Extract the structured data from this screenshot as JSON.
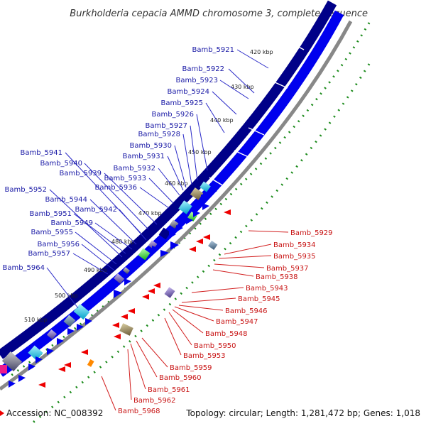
{
  "title": "Burkholderia cepacia AMMD chromosome 3, complete sequence",
  "footer": {
    "accession": "Accession: NC_008392",
    "summary": "Topology: circular; Length: 1,281,472 bp; Genes: 1,018"
  },
  "kbp_ticks": [
    "420 kbp",
    "430 kbp",
    "440 kbp",
    "450 kbp",
    "460 kbp",
    "470 kbp",
    "480 kbp",
    "490 kbp",
    "500 kbp",
    "510 kbp"
  ],
  "blue_labels": [
    "Bamb_5921",
    "Bamb_5922",
    "Bamb_5923",
    "Bamb_5924",
    "Bamb_5925",
    "Bamb_5926",
    "Bamb_5927",
    "Bamb_5928",
    "Bamb_5930",
    "Bamb_5931",
    "Bamb_5932",
    "Bamb_5933",
    "Bamb_5936",
    "Bamb_5939",
    "Bamb_5940",
    "Bamb_5941",
    "Bamb_5942",
    "Bamb_5944",
    "Bamb_5949",
    "Bamb_5951",
    "Bamb_5952",
    "Bamb_5955",
    "Bamb_5956",
    "Bamb_5957",
    "Bamb_5964"
  ],
  "red_labels": [
    "Bamb_5929",
    "Bamb_5934",
    "Bamb_5935",
    "Bamb_5937",
    "Bamb_5938",
    "Bamb_5943",
    "Bamb_5945",
    "Bamb_5946",
    "Bamb_5947",
    "Bamb_5948",
    "Bamb_5950",
    "Bamb_5953",
    "Bamb_5959",
    "Bamb_5960",
    "Bamb_5961",
    "Bamb_5962",
    "Bamb_5968"
  ],
  "colors": {
    "forward_gene": "#0000ee",
    "forward_gene_dark": "#000088",
    "reverse_gene": "#ee0000",
    "backbone": "#888888",
    "dotted_ring": "#1a8a1a"
  }
}
